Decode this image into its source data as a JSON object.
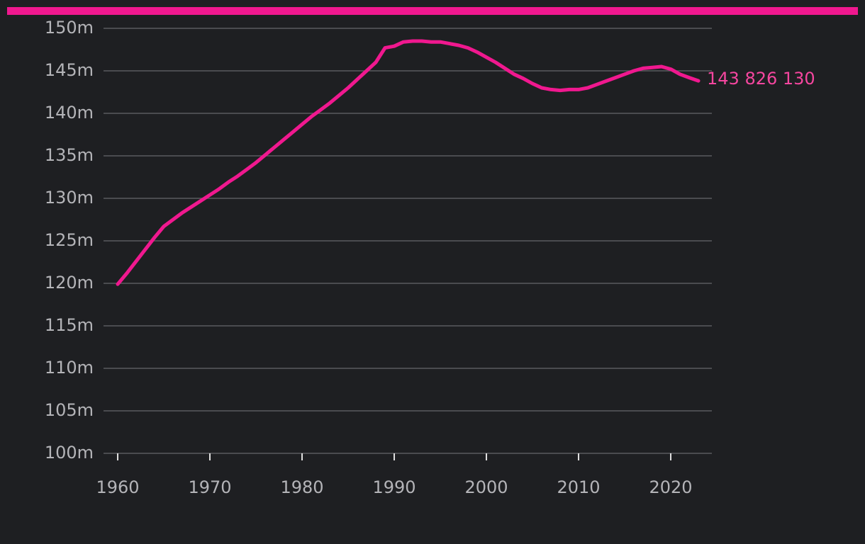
{
  "chart_data": {
    "type": "line",
    "x": [
      1960,
      1961,
      1962,
      1963,
      1964,
      1965,
      1966,
      1967,
      1968,
      1969,
      1970,
      1971,
      1972,
      1973,
      1974,
      1975,
      1976,
      1977,
      1978,
      1979,
      1980,
      1981,
      1982,
      1983,
      1984,
      1985,
      1986,
      1987,
      1988,
      1989,
      1990,
      1991,
      1992,
      1993,
      1994,
      1995,
      1996,
      1997,
      1998,
      1999,
      2000,
      2001,
      2002,
      2003,
      2004,
      2005,
      2006,
      2007,
      2008,
      2009,
      2010,
      2011,
      2012,
      2013,
      2014,
      2015,
      2016,
      2017,
      2018,
      2019,
      2020,
      2021,
      2022,
      2023
    ],
    "values": [
      119900000,
      121200000,
      122600000,
      124000000,
      125400000,
      126700000,
      127500000,
      128300000,
      129000000,
      129700000,
      130400000,
      131100000,
      131900000,
      132600000,
      133400000,
      134200000,
      135100000,
      136000000,
      136900000,
      137800000,
      138700000,
      139600000,
      140400000,
      141200000,
      142100000,
      143000000,
      144000000,
      145000000,
      146000000,
      147700000,
      147900000,
      148400000,
      148500000,
      148500000,
      148400000,
      148400000,
      148200000,
      148000000,
      147700000,
      147200000,
      146600000,
      146000000,
      145300000,
      144600000,
      144100000,
      143500000,
      143000000,
      142800000,
      142700000,
      142800000,
      142800000,
      143000000,
      143400000,
      143800000,
      144200000,
      144600000,
      145000000,
      145300000,
      145400000,
      145500000,
      145200000,
      144600000,
      144200000,
      143826130
    ],
    "value_labels": [
      null,
      null,
      null,
      null,
      null,
      null,
      null,
      null,
      null,
      null,
      null,
      null,
      null,
      null,
      null,
      null,
      null,
      null,
      null,
      null,
      null,
      null,
      null,
      null,
      null,
      null,
      null,
      null,
      null,
      null,
      null,
      null,
      null,
      null,
      null,
      null,
      null,
      null,
      null,
      null,
      null,
      null,
      null,
      null,
      null,
      null,
      null,
      null,
      null,
      null,
      null,
      null,
      null,
      null,
      null,
      null,
      null,
      null,
      null,
      null,
      null,
      null,
      null,
      "143 826 130"
    ],
    "color": "#f0188f",
    "label_color": "#f5469f",
    "xlim": [
      1958.46,
      2024.46
    ],
    "xticks": [
      1960,
      1970,
      1980,
      1990,
      2000,
      2010,
      2020
    ],
    "ylim": [
      100000000,
      150000000
    ],
    "yticks": [
      {
        "value": 100000000,
        "label": "100m"
      },
      {
        "value": 105000000,
        "label": "105m"
      },
      {
        "value": 110000000,
        "label": "110m"
      },
      {
        "value": 115000000,
        "label": "115m"
      },
      {
        "value": 120000000,
        "label": "120m"
      },
      {
        "value": 125000000,
        "label": "125m"
      },
      {
        "value": 130000000,
        "label": "130m"
      },
      {
        "value": 135000000,
        "label": "135m"
      },
      {
        "value": 140000000,
        "label": "140m"
      },
      {
        "value": 145000000,
        "label": "145m"
      },
      {
        "value": 150000000,
        "label": "150m"
      }
    ],
    "grid": true
  }
}
